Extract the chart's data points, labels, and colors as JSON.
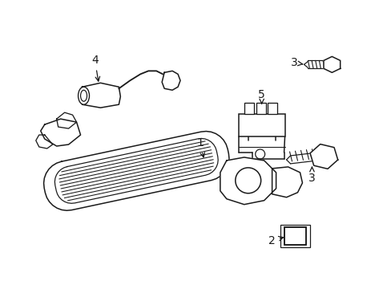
{
  "background_color": "#ffffff",
  "line_color": "#1a1a1a",
  "fig_width": 4.89,
  "fig_height": 3.6
}
